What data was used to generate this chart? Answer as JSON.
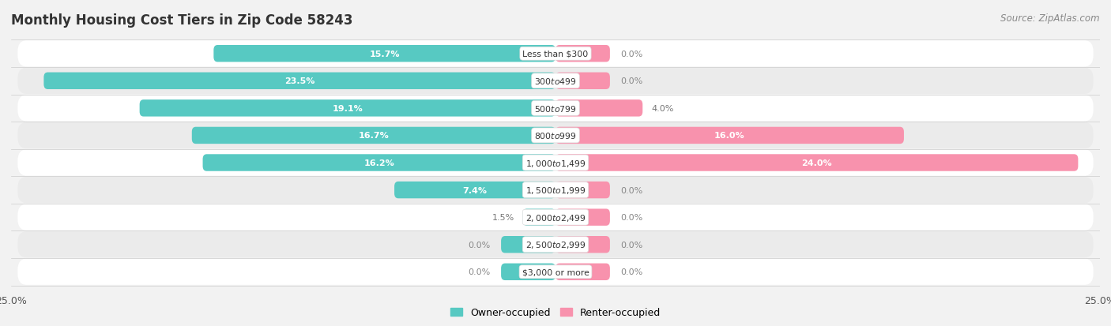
{
  "title": "Monthly Housing Cost Tiers in Zip Code 58243",
  "source": "Source: ZipAtlas.com",
  "categories": [
    "Less than $300",
    "$300 to $499",
    "$500 to $799",
    "$800 to $999",
    "$1,000 to $1,499",
    "$1,500 to $1,999",
    "$2,000 to $2,499",
    "$2,500 to $2,999",
    "$3,000 or more"
  ],
  "owner_values": [
    15.7,
    23.5,
    19.1,
    16.7,
    16.2,
    7.4,
    1.5,
    0.0,
    0.0
  ],
  "renter_values": [
    0.0,
    0.0,
    4.0,
    16.0,
    24.0,
    0.0,
    0.0,
    0.0,
    0.0
  ],
  "owner_color": "#57C9C2",
  "renter_color": "#F892AD",
  "owner_label": "Owner-occupied",
  "renter_label": "Renter-occupied",
  "xlim": 25.0,
  "background_color": "#f2f2f2",
  "row_color_odd": "#ffffff",
  "row_color_even": "#ebebeb",
  "title_fontsize": 12,
  "source_fontsize": 8.5,
  "val_fontsize": 8,
  "cat_fontsize": 7.8,
  "bar_height": 0.62,
  "stub_size": 2.5,
  "legend_fontsize": 9
}
